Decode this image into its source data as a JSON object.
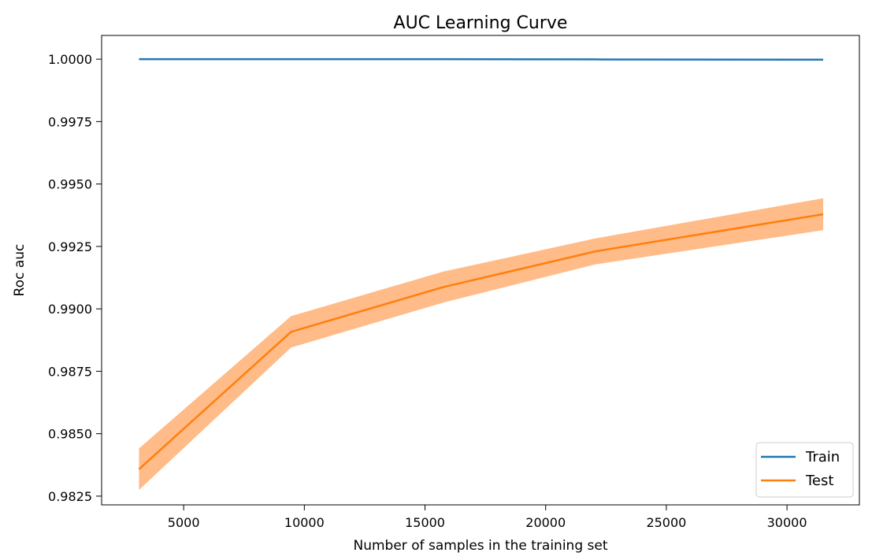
{
  "chart_data": {
    "type": "line",
    "title": "AUC Learning Curve",
    "xlabel": "Number of samples in the training set",
    "ylabel": "Roc auc",
    "xlim": [
      1600,
      33000
    ],
    "ylim": [
      0.98215,
      1.00095
    ],
    "xticks": [
      5000,
      10000,
      15000,
      20000,
      25000,
      30000
    ],
    "yticks": [
      0.9825,
      0.985,
      0.9875,
      0.99,
      0.9925,
      0.995,
      0.9975,
      1.0
    ],
    "x": [
      3150,
      9450,
      15750,
      22050,
      31500
    ],
    "series": [
      {
        "name": "Train",
        "color": "#1f77b4",
        "values": [
          1.0,
          1.0,
          1.0,
          0.99999,
          0.99998
        ]
      },
      {
        "name": "Test",
        "color": "#ff7f0e",
        "band_color": "#ffbb88",
        "values": [
          0.98358,
          0.98908,
          0.99087,
          0.9923,
          0.99379
        ],
        "lower": [
          0.98275,
          0.98845,
          0.99025,
          0.99178,
          0.99315
        ],
        "upper": [
          0.98441,
          0.98971,
          0.99149,
          0.99282,
          0.99443
        ]
      }
    ],
    "legend": "lower-right",
    "grid": false
  }
}
